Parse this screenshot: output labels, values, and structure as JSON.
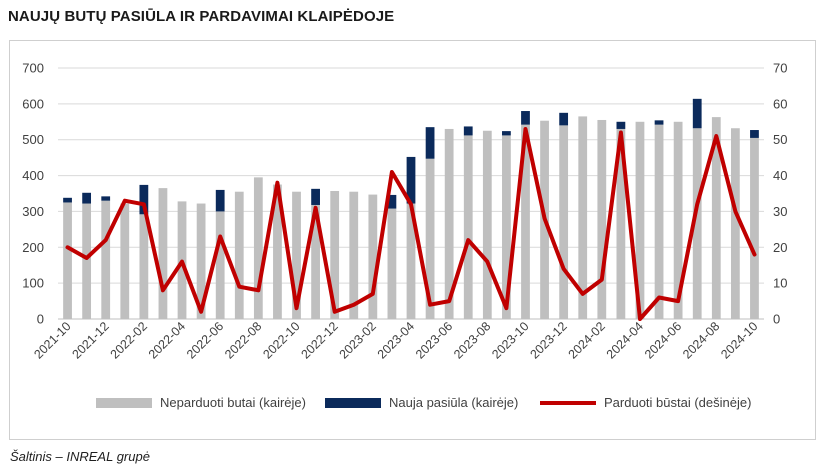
{
  "title": "NAUJŲ BUTŲ PASIŪLA IR PARDAVIMAI KLAIPĖDOJE",
  "source": "Šaltinis – INREAL grupė",
  "colors": {
    "unsold": "#bfbfbf",
    "new_supply": "#0b2a5b",
    "sold": "#c00000",
    "grid": "#d9d9d9"
  },
  "chart_data": {
    "type": "bar",
    "title": "NAUJŲ BUTŲ PASIŪLA IR PARDAVIMAI KLAIPĖDOJE",
    "x_tick_labels": [
      "2021-10",
      "2021-12",
      "2022-02",
      "2022-04",
      "2022-06",
      "2022-08",
      "2022-10",
      "2022-12",
      "2023-02",
      "2023-04",
      "2023-06",
      "2023-08",
      "2023-10",
      "2023-12",
      "2024-02",
      "2024-04",
      "2024-06",
      "2024-08",
      "2024-10"
    ],
    "categories": [
      "2021-10",
      "2021-11",
      "2021-12",
      "2022-01",
      "2022-02",
      "2022-03",
      "2022-04",
      "2022-05",
      "2022-06",
      "2022-07",
      "2022-08",
      "2022-09",
      "2022-10",
      "2022-11",
      "2022-12",
      "2023-01",
      "2023-02",
      "2023-03",
      "2023-04",
      "2023-05",
      "2023-06",
      "2023-07",
      "2023-08",
      "2023-09",
      "2023-10",
      "2023-11",
      "2023-12",
      "2024-01",
      "2024-02",
      "2024-03",
      "2024-04",
      "2024-05",
      "2024-06",
      "2024-07",
      "2024-08",
      "2024-09",
      "2024-10"
    ],
    "left_ylim": [
      0,
      700
    ],
    "left_yticks": [
      0,
      100,
      200,
      300,
      400,
      500,
      600,
      700
    ],
    "right_ylim": [
      0,
      70
    ],
    "right_yticks": [
      0,
      10,
      20,
      30,
      40,
      50,
      60,
      70
    ],
    "series": [
      {
        "name": "Neparduoti butai (kairėje)",
        "type": "bar",
        "axis": "left",
        "values": [
          325,
          322,
          330,
          322,
          292,
          365,
          328,
          322,
          300,
          355,
          395,
          375,
          355,
          318,
          357,
          355,
          347,
          308,
          322,
          447,
          530,
          512,
          525,
          512,
          542,
          553,
          540,
          565,
          555,
          530,
          550,
          542,
          550,
          532,
          563,
          532,
          505
        ]
      },
      {
        "name": "Nauja pasiūla (kairėje)",
        "type": "bar",
        "axis": "left",
        "stacked_on": "Neparduoti butai (kairėje)",
        "values": [
          13,
          30,
          12,
          0,
          82,
          0,
          0,
          0,
          60,
          0,
          0,
          0,
          0,
          45,
          0,
          0,
          0,
          38,
          130,
          88,
          0,
          25,
          0,
          12,
          38,
          0,
          35,
          0,
          0,
          20,
          0,
          12,
          0,
          82,
          0,
          0,
          22
        ]
      },
      {
        "name": "Parduoti būstai (dešinėje)",
        "type": "line",
        "axis": "right",
        "values": [
          20,
          17,
          22,
          33,
          32,
          8,
          16,
          2,
          23,
          9,
          8,
          38,
          3,
          31,
          2,
          4,
          7,
          41,
          32,
          4,
          5,
          22,
          16,
          3,
          53,
          28,
          14,
          7,
          11,
          52,
          0,
          6,
          5,
          32,
          51,
          30,
          18
        ]
      }
    ],
    "legend": {
      "position": "bottom",
      "entries": [
        "Neparduoti butai (kairėje)",
        "Nauja pasiūla (kairėje)",
        "Parduoti būstai (dešinėje)"
      ]
    },
    "grid": true
  }
}
